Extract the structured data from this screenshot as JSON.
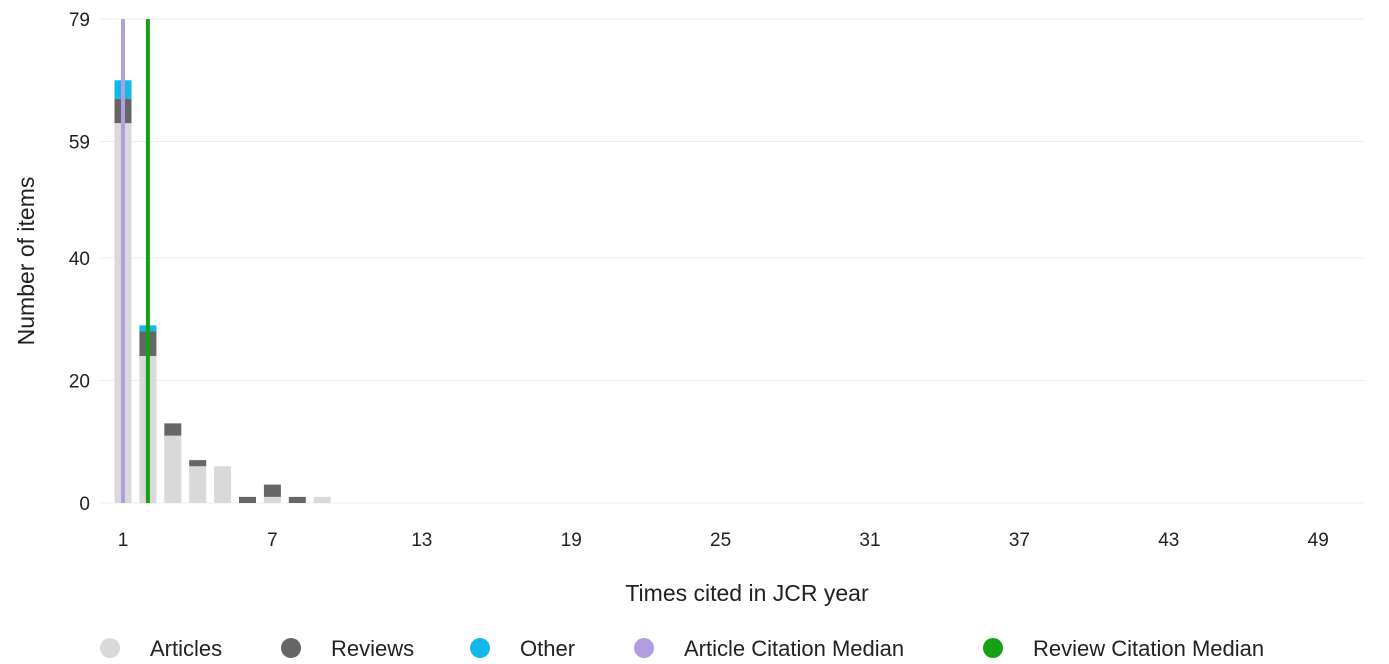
{
  "chart_data": {
    "type": "bar",
    "stacked": true,
    "xlabel": "Times cited in JCR year",
    "ylabel": "Number of items",
    "x_ticks": [
      1,
      7,
      13,
      19,
      25,
      31,
      37,
      43,
      49
    ],
    "y_ticks": [
      0,
      20,
      40,
      59,
      79
    ],
    "xlim": [
      1,
      50
    ],
    "ylim": [
      0,
      79
    ],
    "grid": "horizontal",
    "legend_position": "bottom",
    "x": [
      1,
      2,
      3,
      4,
      5,
      6,
      7,
      8,
      9
    ],
    "series": [
      {
        "name": "Articles",
        "color": "#d9d9d9",
        "values": [
          62,
          24,
          11,
          6,
          6,
          0,
          1,
          0,
          1
        ]
      },
      {
        "name": "Reviews",
        "color": "#666666",
        "values": [
          4,
          4,
          2,
          1,
          0,
          1,
          2,
          1,
          0
        ]
      },
      {
        "name": "Other",
        "color": "#12b8ea",
        "values": [
          3,
          1,
          0,
          0,
          0,
          0,
          0,
          0,
          0
        ]
      }
    ],
    "medians": [
      {
        "name": "Article Citation Median",
        "color": "#b09ee0",
        "x": 1
      },
      {
        "name": "Review Citation Median",
        "color": "#15a115",
        "x": 2
      }
    ]
  }
}
